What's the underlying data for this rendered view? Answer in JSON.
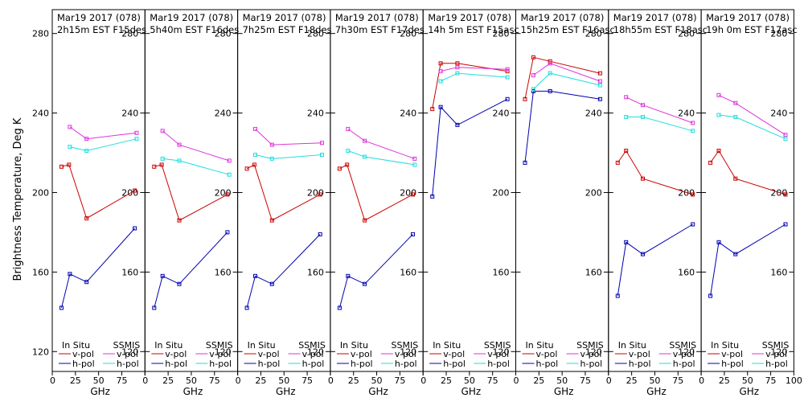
{
  "figure": {
    "ylabel": "Brightness Temperature, Deg K",
    "xlabel": "GHz",
    "legend": {
      "insitu_label": "In Situ",
      "ssmis_label": "SSMIS",
      "vpol_label": "v-pol",
      "hpol_label": "h-pol"
    },
    "colors": {
      "insitu_v": "#cc0000",
      "insitu_h": "#0000b0",
      "ssmis_v": "#dd33dd",
      "ssmis_h": "#22dddd"
    }
  },
  "chart_data": [
    {
      "type": "line",
      "title": "Mar19 2017 (078)",
      "subtitle": "2h15m EST F15des",
      "x": [
        10,
        19,
        37,
        89
      ],
      "xlim": [
        0,
        100
      ],
      "ylim": [
        110,
        292
      ],
      "series": [
        {
          "name": "In Situ v-pol",
          "x": [
            10,
            18,
            37,
            89
          ],
          "values": [
            213,
            214,
            187,
            201
          ]
        },
        {
          "name": "In Situ h-pol",
          "x": [
            10,
            19,
            37,
            89
          ],
          "values": [
            142,
            159,
            155,
            182
          ]
        },
        {
          "name": "SSMIS v-pol",
          "x": [
            19,
            37,
            91
          ],
          "values": [
            233,
            227,
            230
          ]
        },
        {
          "name": "SSMIS h-pol",
          "x": [
            19,
            37,
            91
          ],
          "values": [
            223,
            221,
            227
          ]
        }
      ]
    },
    {
      "type": "line",
      "title": "Mar19 2017 (078)",
      "subtitle": "5h40m EST F16des",
      "x": [
        10,
        19,
        37,
        89
      ],
      "xlim": [
        0,
        100
      ],
      "ylim": [
        110,
        292
      ],
      "series": [
        {
          "name": "In Situ v-pol",
          "x": [
            10,
            18,
            37,
            89
          ],
          "values": [
            213,
            214,
            186,
            199
          ]
        },
        {
          "name": "In Situ h-pol",
          "x": [
            10,
            19,
            37,
            89
          ],
          "values": [
            142,
            158,
            154,
            180
          ]
        },
        {
          "name": "SSMIS v-pol",
          "x": [
            19,
            37,
            91
          ],
          "values": [
            231,
            224,
            216
          ]
        },
        {
          "name": "SSMIS h-pol",
          "x": [
            19,
            37,
            91
          ],
          "values": [
            217,
            216,
            209
          ]
        }
      ]
    },
    {
      "type": "line",
      "title": "Mar19 2017 (078)",
      "subtitle": "7h25m EST F18des",
      "x": [
        10,
        19,
        37,
        89
      ],
      "xlim": [
        0,
        100
      ],
      "ylim": [
        110,
        292
      ],
      "series": [
        {
          "name": "In Situ v-pol",
          "x": [
            10,
            18,
            37,
            89
          ],
          "values": [
            212,
            214,
            186,
            199
          ]
        },
        {
          "name": "In Situ h-pol",
          "x": [
            10,
            19,
            37,
            89
          ],
          "values": [
            142,
            158,
            154,
            179
          ]
        },
        {
          "name": "SSMIS v-pol",
          "x": [
            19,
            37,
            91
          ],
          "values": [
            232,
            224,
            225
          ]
        },
        {
          "name": "SSMIS h-pol",
          "x": [
            19,
            37,
            91
          ],
          "values": [
            219,
            217,
            219
          ]
        }
      ]
    },
    {
      "type": "line",
      "title": "Mar19 2017 (078)",
      "subtitle": "7h30m EST F17des",
      "x": [
        10,
        19,
        37,
        89
      ],
      "xlim": [
        0,
        100
      ],
      "ylim": [
        110,
        292
      ],
      "series": [
        {
          "name": "In Situ v-pol",
          "x": [
            10,
            18,
            37,
            89
          ],
          "values": [
            212,
            214,
            186,
            199
          ]
        },
        {
          "name": "In Situ h-pol",
          "x": [
            10,
            19,
            37,
            89
          ],
          "values": [
            142,
            158,
            154,
            179
          ]
        },
        {
          "name": "SSMIS v-pol",
          "x": [
            19,
            37,
            91
          ],
          "values": [
            232,
            226,
            217
          ]
        },
        {
          "name": "SSMIS h-pol",
          "x": [
            19,
            37,
            91
          ],
          "values": [
            221,
            218,
            214
          ]
        }
      ]
    },
    {
      "type": "line",
      "title": "Mar19 2017 (078)",
      "subtitle": "14h 5m EST F15asc",
      "x": [
        10,
        19,
        37,
        89
      ],
      "xlim": [
        0,
        100
      ],
      "ylim": [
        110,
        292
      ],
      "series": [
        {
          "name": "In Situ v-pol",
          "x": [
            10,
            19,
            37,
            91
          ],
          "values": [
            242,
            265,
            265,
            261
          ]
        },
        {
          "name": "In Situ h-pol",
          "x": [
            10,
            19,
            37,
            91
          ],
          "values": [
            198,
            243,
            234,
            247
          ]
        },
        {
          "name": "SSMIS v-pol",
          "x": [
            19,
            37,
            91
          ],
          "values": [
            261,
            263,
            262
          ]
        },
        {
          "name": "SSMIS h-pol",
          "x": [
            19,
            37,
            91
          ],
          "values": [
            256,
            260,
            258
          ]
        }
      ]
    },
    {
      "type": "line",
      "title": "Mar19 2017 (078)",
      "subtitle": "15h25m EST F16asc",
      "x": [
        10,
        19,
        37,
        89
      ],
      "xlim": [
        0,
        100
      ],
      "ylim": [
        110,
        292
      ],
      "series": [
        {
          "name": "In Situ v-pol",
          "x": [
            10,
            19,
            37,
            91
          ],
          "values": [
            247,
            268,
            266,
            260
          ]
        },
        {
          "name": "In Situ h-pol",
          "x": [
            10,
            19,
            37,
            91
          ],
          "values": [
            215,
            251,
            251,
            247
          ]
        },
        {
          "name": "SSMIS v-pol",
          "x": [
            19,
            37,
            91
          ],
          "values": [
            259,
            265,
            256
          ]
        },
        {
          "name": "SSMIS h-pol",
          "x": [
            19,
            37,
            91
          ],
          "values": [
            252,
            260,
            254
          ]
        }
      ]
    },
    {
      "type": "line",
      "title": "Mar19 2017 (078)",
      "subtitle": "18h55m EST F18asc",
      "x": [
        10,
        19,
        37,
        89
      ],
      "xlim": [
        0,
        100
      ],
      "ylim": [
        110,
        292
      ],
      "series": [
        {
          "name": "In Situ v-pol",
          "x": [
            10,
            19,
            37,
            91
          ],
          "values": [
            215,
            221,
            207,
            199
          ]
        },
        {
          "name": "In Situ h-pol",
          "x": [
            10,
            19,
            37,
            91
          ],
          "values": [
            148,
            175,
            169,
            184
          ]
        },
        {
          "name": "SSMIS v-pol",
          "x": [
            19,
            37,
            91
          ],
          "values": [
            248,
            244,
            235
          ]
        },
        {
          "name": "SSMIS h-pol",
          "x": [
            19,
            37,
            91
          ],
          "values": [
            238,
            238,
            231
          ]
        }
      ]
    },
    {
      "type": "line",
      "title": "Mar19 2017 (078)",
      "subtitle": "19h 0m EST F17asc",
      "x": [
        10,
        19,
        37,
        89
      ],
      "xlim": [
        0,
        100
      ],
      "ylim": [
        110,
        292
      ],
      "series": [
        {
          "name": "In Situ v-pol",
          "x": [
            10,
            19,
            37,
            91
          ],
          "values": [
            215,
            221,
            207,
            199
          ]
        },
        {
          "name": "In Situ h-pol",
          "x": [
            10,
            19,
            37,
            91
          ],
          "values": [
            148,
            175,
            169,
            184
          ]
        },
        {
          "name": "SSMIS v-pol",
          "x": [
            19,
            37,
            91
          ],
          "values": [
            249,
            245,
            229
          ]
        },
        {
          "name": "SSMIS h-pol",
          "x": [
            19,
            37,
            91
          ],
          "values": [
            239,
            238,
            227
          ]
        }
      ]
    }
  ],
  "axes": {
    "yticks": [
      120,
      160,
      200,
      240,
      280
    ],
    "yticklabels": [
      "120",
      "160",
      "200",
      "240",
      "280"
    ],
    "xticks": [
      0,
      25,
      50,
      75,
      100
    ],
    "xticklabels": [
      "0",
      "25",
      "50",
      "75",
      "100"
    ]
  }
}
